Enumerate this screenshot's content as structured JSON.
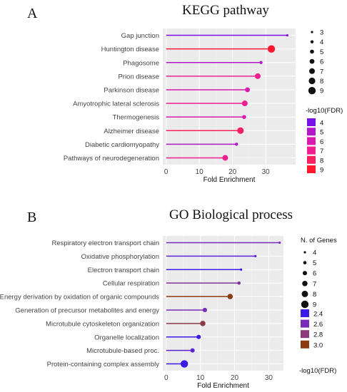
{
  "chart_data": [
    {
      "type": "lollipop",
      "panel_label": "A",
      "title": "KEGG pathway",
      "xlabel": "Fold Enrichment",
      "xlim": [
        -1,
        39
      ],
      "xticks": [
        0,
        10,
        20,
        30
      ],
      "categories": [
        "Gap junction",
        "Huntington disease",
        "Phagosome",
        "Prion disease",
        "Parkinson disease",
        "Amyotrophic lateral sclerosis",
        "Thermogenesis",
        "Alzheimer disease",
        "Diabetic cardiomyopathy",
        "Pathways of neurodegeneration"
      ],
      "values": [
        36.5,
        31.7,
        28.6,
        27.6,
        24.5,
        23.7,
        23.5,
        22.4,
        21.2,
        17.8
      ],
      "n_genes": [
        3,
        9,
        4,
        7,
        6,
        7,
        5,
        8,
        4,
        7
      ],
      "neg_log10_fdr": [
        4,
        9,
        5,
        7,
        6,
        7,
        6,
        8,
        5,
        7
      ],
      "size_legend": {
        "title": "",
        "values": [
          "3",
          "4",
          "5",
          "6",
          "7",
          "8",
          "9"
        ]
      },
      "color_legend": {
        "title": "-log10(FDR)",
        "values": [
          "4",
          "5",
          "6",
          "7",
          "8",
          "9"
        ],
        "colors": [
          "#7a10e8",
          "#b018c8",
          "#d81ab0",
          "#ee2090",
          "#f82060",
          "#ff1830"
        ]
      }
    },
    {
      "type": "lollipop",
      "panel_label": "B",
      "title": "GO Biological process",
      "xlabel": "Fold Enrichment",
      "xlim": [
        -1,
        34.3
      ],
      "xticks": [
        0,
        10,
        20,
        30
      ],
      "categories": [
        "Respiratory electron transport chain",
        "Oxidative phosphorylation",
        "Electron transport chain",
        "Cellular respiration",
        "Energy derivation by oxidation of organic compounds",
        "Generation of precursor metabolites and energy",
        "Microtubule cytoskeleton organization",
        "Organelle localization",
        "Microtubule-based proc.",
        "Protein-containing complex assembly"
      ],
      "values": [
        33.2,
        26.1,
        21.9,
        21.3,
        18.7,
        11.3,
        10.7,
        9.5,
        7.7,
        5.3
      ],
      "n_genes": [
        4,
        4,
        4,
        5,
        7,
        6,
        7,
        6,
        6,
        9
      ],
      "neg_log10_fdr": [
        2.6,
        2.5,
        2.4,
        2.7,
        3.0,
        2.6,
        2.9,
        2.4,
        2.5,
        2.4
      ],
      "size_legend": {
        "title": "N. of Genes",
        "values": [
          "4",
          "5",
          "6",
          "7",
          "8",
          "9"
        ]
      },
      "color_legend": {
        "title": "-log10(FDR)",
        "values": [
          "2.4",
          "2.6",
          "2.8",
          "3.0"
        ],
        "colors": [
          "#3a1be8",
          "#7a2ab8",
          "#8b3a7a",
          "#8b3a12"
        ]
      }
    }
  ]
}
